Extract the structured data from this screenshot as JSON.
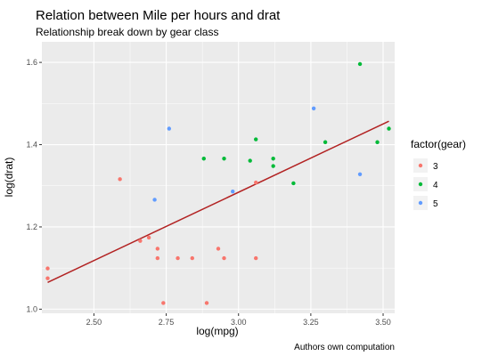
{
  "chart_data": {
    "type": "scatter",
    "title": "Relation between Mile per hours and drat",
    "subtitle": "Relationship break down by gear class",
    "xlabel": "log(mpg)",
    "ylabel": "log(drat)",
    "caption": "Authors own computation",
    "xlim": [
      2.32,
      3.54
    ],
    "ylim": [
      0.99,
      1.65
    ],
    "x_ticks": [
      2.5,
      2.75,
      3.0,
      3.25,
      3.5
    ],
    "x_tick_labels": [
      "2.50",
      "2.75",
      "3.00",
      "3.25",
      "3.50"
    ],
    "y_ticks": [
      1.0,
      1.2,
      1.4,
      1.6
    ],
    "y_tick_labels": [
      "1.0",
      "1.2",
      "1.4",
      "1.6"
    ],
    "grid": true,
    "background_color": "#EBEBEB",
    "grid_color": "#FFFFFF",
    "legend": {
      "title": "factor(gear)",
      "position": "right"
    },
    "series": [
      {
        "name": "3",
        "color": "#F8766D",
        "points": [
          {
            "x": 2.34,
            "y": 1.099
          },
          {
            "x": 2.34,
            "y": 1.075
          },
          {
            "x": 2.59,
            "y": 1.316
          },
          {
            "x": 2.66,
            "y": 1.166
          },
          {
            "x": 2.69,
            "y": 1.174
          },
          {
            "x": 2.72,
            "y": 1.147
          },
          {
            "x": 2.72,
            "y": 1.124
          },
          {
            "x": 2.74,
            "y": 1.015
          },
          {
            "x": 2.79,
            "y": 1.124
          },
          {
            "x": 2.84,
            "y": 1.124
          },
          {
            "x": 2.89,
            "y": 1.015
          },
          {
            "x": 2.93,
            "y": 1.147
          },
          {
            "x": 2.95,
            "y": 1.124
          },
          {
            "x": 3.06,
            "y": 1.124
          },
          {
            "x": 3.06,
            "y": 1.308
          }
        ]
      },
      {
        "name": "4",
        "color": "#00BA38",
        "points": [
          {
            "x": 2.88,
            "y": 1.366
          },
          {
            "x": 2.95,
            "y": 1.366
          },
          {
            "x": 3.04,
            "y": 1.361
          },
          {
            "x": 3.06,
            "y": 1.413
          },
          {
            "x": 3.12,
            "y": 1.366
          },
          {
            "x": 3.12,
            "y": 1.348
          },
          {
            "x": 3.19,
            "y": 1.306
          },
          {
            "x": 3.3,
            "y": 1.406
          },
          {
            "x": 3.42,
            "y": 1.596
          },
          {
            "x": 3.48,
            "y": 1.406
          },
          {
            "x": 3.52,
            "y": 1.439
          }
        ]
      },
      {
        "name": "5",
        "color": "#619CFF",
        "points": [
          {
            "x": 2.71,
            "y": 1.266
          },
          {
            "x": 2.76,
            "y": 1.439
          },
          {
            "x": 2.98,
            "y": 1.286
          },
          {
            "x": 3.26,
            "y": 1.488
          },
          {
            "x": 3.42,
            "y": 1.328
          }
        ]
      }
    ],
    "trend_line": {
      "color": "#B22222",
      "points": [
        {
          "x": 2.34,
          "y": 1.065
        },
        {
          "x": 3.52,
          "y": 1.457
        }
      ]
    }
  }
}
